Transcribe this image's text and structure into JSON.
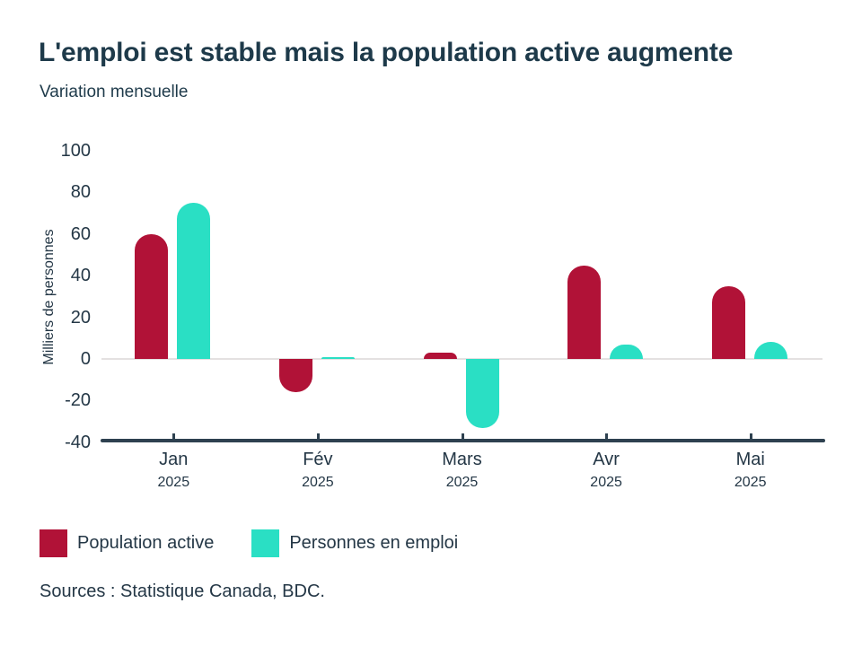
{
  "chart_data": {
    "type": "bar",
    "title": "L'emploi est stable mais la population active augmente",
    "subtitle": "Variation mensuelle",
    "ylabel": "Milliers de personnes",
    "ylim": [
      -40,
      100
    ],
    "ytick_step": 20,
    "yticks": [
      100,
      80,
      60,
      40,
      20,
      0,
      -20,
      -40
    ],
    "categories": [
      "Jan",
      "Fév",
      "Mars",
      "Avr",
      "Mai"
    ],
    "category_year": "2025",
    "series": [
      {
        "name": "Population active",
        "color": "#b11237",
        "values": [
          60,
          -16,
          3,
          45,
          35
        ]
      },
      {
        "name": "Personnes en emploi",
        "color": "#2adfc4",
        "values": [
          75,
          1,
          -33,
          7,
          8
        ]
      }
    ],
    "grid": "zero-line-only",
    "legend_position": "bottom-left",
    "axis_color": "#2e4150",
    "zero_line_color": "#e4e1e1",
    "source": "Sources : Statistique Canada, BDC."
  }
}
